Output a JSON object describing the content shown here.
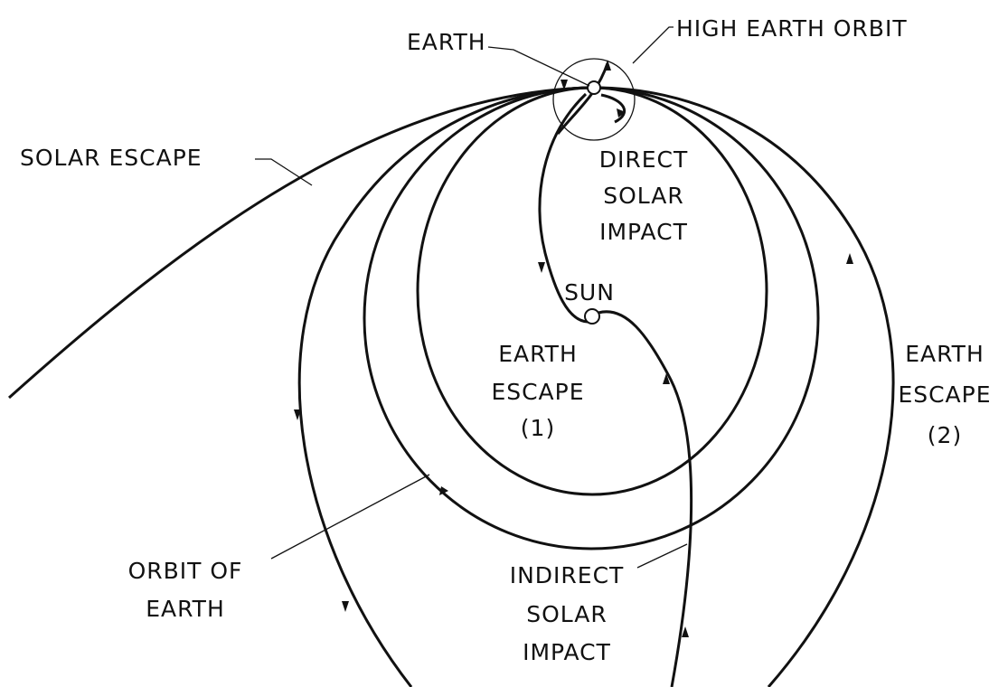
{
  "labels": {
    "earth": [
      "EARTH"
    ],
    "high_earth_orbit": [
      "HIGH EARTH ORBIT"
    ],
    "solar_escape": [
      "SOLAR ESCAPE"
    ],
    "direct_solar_impact": [
      "DIRECT",
      "SOLAR",
      "IMPACT"
    ],
    "sun": [
      "SUN"
    ],
    "earth_escape_1": [
      "EARTH",
      "ESCAPE",
      "(1)"
    ],
    "earth_escape_2": [
      "EARTH",
      "ESCAPE",
      "(2)"
    ],
    "orbit_of_earth": [
      "ORBIT OF",
      "EARTH"
    ],
    "indirect_solar_impact": [
      "INDIRECT",
      "SOLAR",
      "IMPACT"
    ]
  }
}
